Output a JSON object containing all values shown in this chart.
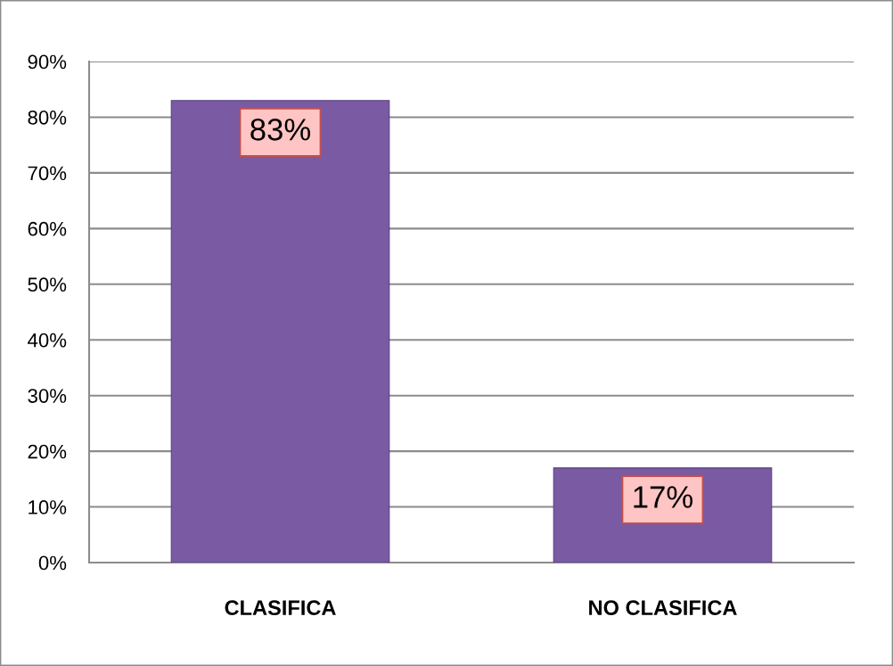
{
  "chart_data": {
    "type": "bar",
    "categories": [
      "CLASIFICA",
      "NO CLASIFICA"
    ],
    "values": [
      83,
      17
    ],
    "color": "#7a5aa3",
    "value_labels": [
      "83%",
      "17%"
    ],
    "ylim": [
      0,
      90
    ],
    "yticks": [
      {
        "value": 0,
        "label": "0%"
      },
      {
        "value": 10,
        "label": "10%"
      },
      {
        "value": 20,
        "label": "20%"
      },
      {
        "value": 30,
        "label": "30%"
      },
      {
        "value": 40,
        "label": "40%"
      },
      {
        "value": 50,
        "label": "50%"
      },
      {
        "value": 60,
        "label": "60%"
      },
      {
        "value": 70,
        "label": "70%"
      },
      {
        "value": 80,
        "label": "80%"
      },
      {
        "value": 90,
        "label": "90%"
      }
    ],
    "grid": "y"
  }
}
